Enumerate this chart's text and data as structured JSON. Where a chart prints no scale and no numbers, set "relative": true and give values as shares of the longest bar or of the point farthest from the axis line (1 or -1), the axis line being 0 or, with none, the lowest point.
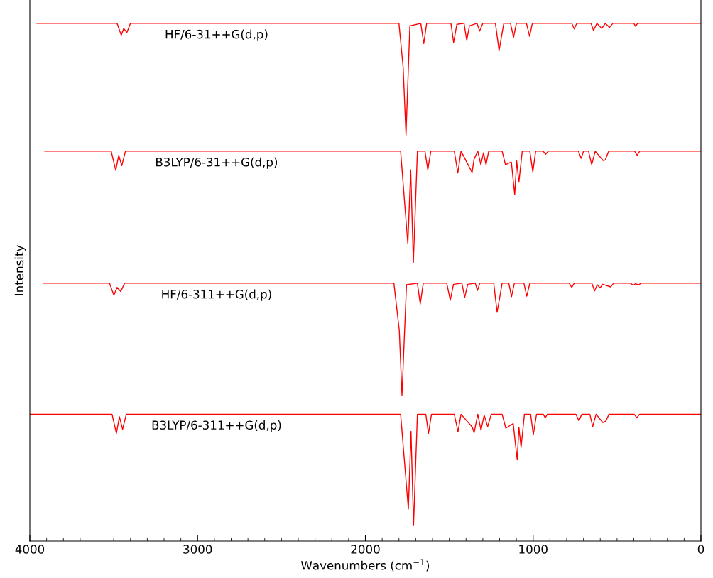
{
  "chart_data": {
    "type": "line",
    "relative": true,
    "xlabel": "Wavenumbers (cm$^{−1}$)",
    "ylabel": "Intensity",
    "xlim": [
      4000,
      0
    ],
    "xticks": [
      4000,
      {
        "value": 3900,
        "label": null
      },
      {
        "value": 3800,
        "label": null
      },
      {
        "value": 3700,
        "label": null
      },
      {
        "value": 3600,
        "label": null
      },
      {
        "value": 3500,
        "label": null
      },
      {
        "value": 3400,
        "label": null
      },
      {
        "value": 3300,
        "label": null
      },
      {
        "value": 3200,
        "label": null
      },
      {
        "value": 3100,
        "label": null
      },
      3000,
      {
        "value": 2900,
        "label": null
      },
      {
        "value": 2800,
        "label": null
      },
      {
        "value": 2700,
        "label": null
      },
      {
        "value": 2600,
        "label": null
      },
      {
        "value": 2500,
        "label": null
      },
      {
        "value": 2400,
        "label": null
      },
      {
        "value": 2300,
        "label": null
      },
      {
        "value": 2200,
        "label": null
      },
      {
        "value": 2100,
        "label": null
      },
      2000,
      {
        "value": 1900,
        "label": null
      },
      {
        "value": 1800,
        "label": null
      },
      {
        "value": 1700,
        "label": null
      },
      {
        "value": 1600,
        "label": null
      },
      {
        "value": 1500,
        "label": null
      },
      {
        "value": 1400,
        "label": null
      },
      {
        "value": 1300,
        "label": null
      },
      {
        "value": 1200,
        "label": null
      },
      {
        "value": 1100,
        "label": null
      },
      1000,
      {
        "value": 900,
        "label": null
      },
      {
        "value": 800,
        "label": null
      },
      {
        "value": 700,
        "label": null
      },
      {
        "value": 600,
        "label": null
      },
      {
        "value": 500,
        "label": null
      },
      {
        "value": 400,
        "label": null
      },
      {
        "value": 300,
        "label": null
      },
      {
        "value": 200,
        "label": null
      },
      {
        "value": 100,
        "label": null
      },
      0
    ],
    "grid": false,
    "legend": false,
    "marker": "none",
    "line_style": "solid",
    "series": [
      {
        "name": "HF/6-31++G(d,p)",
        "color": "#ff0000",
        "x": [
          3958,
          3480,
          3455,
          3440,
          3422,
          3400,
          1800,
          1775,
          1758,
          1735,
          1670,
          1652,
          1635,
          1490,
          1474,
          1455,
          1412,
          1396,
          1380,
          1335,
          1319,
          1300,
          1225,
          1203,
          1191,
          1175,
          1135,
          1117,
          1100,
          1040,
          1021,
          1005,
          770,
          755,
          740,
          655,
          640,
          620,
          591,
          570,
          545,
          525,
          400,
          389,
          378,
          0
        ],
        "values": [
          1.0,
          1.0,
          0.977,
          0.99,
          0.982,
          1.0,
          1.0,
          0.915,
          0.784,
          0.995,
          1.0,
          0.961,
          1.0,
          1.0,
          0.963,
          0.998,
          1.0,
          0.967,
          0.995,
          1.0,
          0.985,
          1.0,
          1.0,
          0.947,
          0.97,
          1.0,
          1.0,
          0.973,
          1.0,
          1.0,
          0.975,
          1.0,
          1.0,
          0.989,
          1.0,
          1.0,
          0.986,
          1.0,
          0.99,
          1.0,
          0.992,
          1.0,
          1.0,
          0.994,
          1.0,
          1.0
        ]
      },
      {
        "name": "B3LYP/6-31++G(d,p)",
        "color": "#ff0000",
        "x": [
          3911,
          3515,
          3488,
          3470,
          3452,
          3430,
          1790,
          1747,
          1730,
          1714,
          1690,
          1645,
          1628,
          1610,
          1470,
          1449,
          1430,
          1364,
          1352,
          1330,
          1312,
          1296,
          1281,
          1265,
          1185,
          1165,
          1130,
          1110,
          1098,
          1085,
          1065,
          1020,
          1002,
          985,
          940,
          926,
          910,
          730,
          714,
          700,
          670,
          651,
          630,
          583,
          570,
          550,
          395,
          380,
          365,
          0
        ],
        "values": [
          0.753,
          0.753,
          0.716,
          0.745,
          0.725,
          0.753,
          0.753,
          0.574,
          0.717,
          0.538,
          0.753,
          0.753,
          0.717,
          0.753,
          0.753,
          0.711,
          0.753,
          0.712,
          0.738,
          0.753,
          0.727,
          0.75,
          0.727,
          0.753,
          0.753,
          0.727,
          0.732,
          0.669,
          0.734,
          0.693,
          0.753,
          0.753,
          0.713,
          0.753,
          0.753,
          0.747,
          0.753,
          0.753,
          0.739,
          0.753,
          0.753,
          0.727,
          0.753,
          0.735,
          0.736,
          0.753,
          0.753,
          0.745,
          0.753,
          0.753
        ]
      },
      {
        "name": "HF/6-311++G(d,p)",
        "color": "#ff0000",
        "x": [
          3920,
          3525,
          3499,
          3480,
          3458,
          3435,
          1830,
          1798,
          1782,
          1755,
          1690,
          1673,
          1655,
          1515,
          1494,
          1475,
          1425,
          1408,
          1390,
          1345,
          1332,
          1318,
          1235,
          1215,
          1201,
          1185,
          1145,
          1129,
          1112,
          1055,
          1038,
          1020,
          785,
          770,
          755,
          650,
          634,
          618,
          601,
          585,
          538,
          520,
          420,
          403,
          390,
          372,
          355,
          0
        ],
        "values": [
          0.498,
          0.498,
          0.475,
          0.49,
          0.482,
          0.498,
          0.498,
          0.407,
          0.282,
          0.495,
          0.498,
          0.458,
          0.498,
          0.498,
          0.465,
          0.496,
          0.498,
          0.471,
          0.496,
          0.498,
          0.484,
          0.498,
          0.498,
          0.442,
          0.467,
          0.498,
          0.498,
          0.472,
          0.498,
          0.498,
          0.473,
          0.498,
          0.498,
          0.49,
          0.498,
          0.498,
          0.483,
          0.495,
          0.489,
          0.496,
          0.491,
          0.498,
          0.498,
          0.494,
          0.497,
          0.495,
          0.498,
          0.498
        ]
      },
      {
        "name": "B3LYP/6-311++G(d,p)",
        "color": "#ff0000",
        "x": [
          4000,
          3510,
          3484,
          3466,
          3447,
          3425,
          1790,
          1744,
          1728,
          1713,
          1690,
          1640,
          1624,
          1606,
          1470,
          1448,
          1430,
          1363,
          1352,
          1330,
          1311,
          1292,
          1271,
          1250,
          1185,
          1163,
          1119,
          1095,
          1085,
          1072,
          1052,
          1015,
          999,
          980,
          940,
          928,
          915,
          745,
          727,
          710,
          662,
          645,
          625,
          585,
          566,
          548,
          398,
          382,
          366,
          0
        ],
        "values": [
          0.245,
          0.245,
          0.208,
          0.24,
          0.216,
          0.245,
          0.245,
          0.062,
          0.212,
          0.03,
          0.245,
          0.245,
          0.208,
          0.245,
          0.245,
          0.211,
          0.245,
          0.22,
          0.209,
          0.245,
          0.214,
          0.243,
          0.221,
          0.245,
          0.245,
          0.218,
          0.227,
          0.157,
          0.22,
          0.181,
          0.245,
          0.245,
          0.205,
          0.245,
          0.245,
          0.238,
          0.245,
          0.245,
          0.232,
          0.245,
          0.245,
          0.221,
          0.245,
          0.229,
          0.232,
          0.245,
          0.245,
          0.238,
          0.245,
          0.245
        ]
      }
    ]
  }
}
